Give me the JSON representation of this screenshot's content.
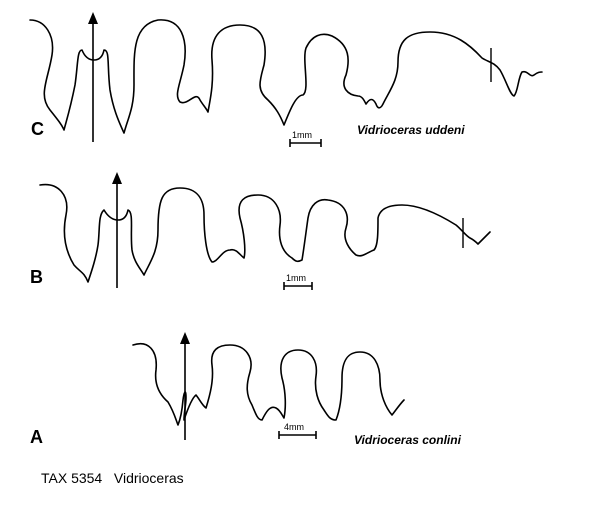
{
  "panels": {
    "c": {
      "label": "C",
      "scale": "1mm",
      "species": "Vidrioceras uddeni"
    },
    "b": {
      "label": "B",
      "scale": "1mm"
    },
    "a": {
      "label": "A",
      "scale": "4mm",
      "species": "Vidrioceras conlini"
    }
  },
  "caption": "TAX 5354   Vidrioceras"
}
